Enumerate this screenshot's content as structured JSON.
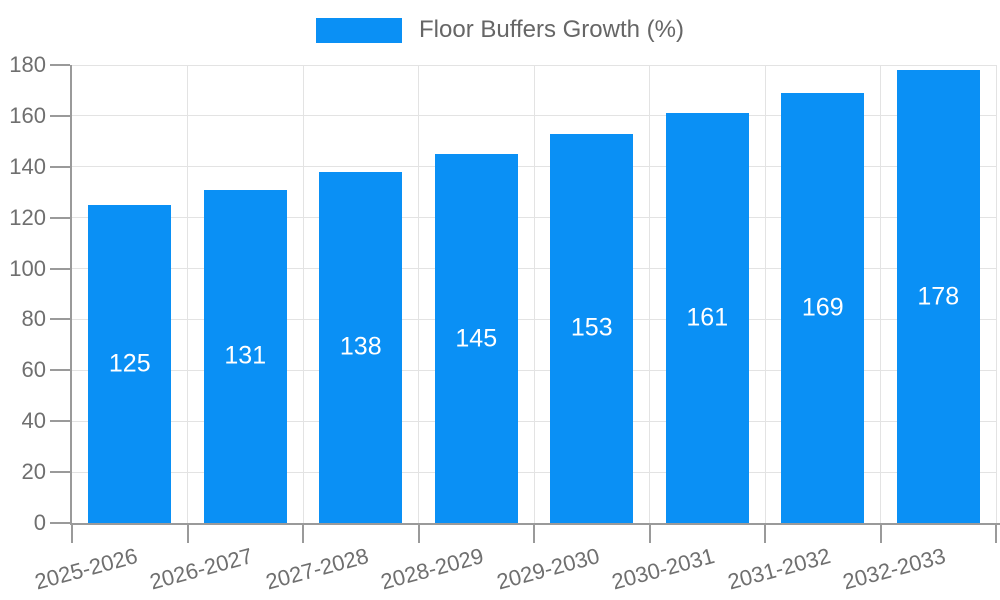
{
  "legend": {
    "label": "Floor Buffers Growth (%)",
    "swatch_color": "#0a90f5"
  },
  "chart_data": {
    "type": "bar",
    "title": "Floor Buffers Growth (%)",
    "series_name": "Floor Buffers Growth (%)",
    "categories": [
      "2025-2026",
      "2026-2027",
      "2027-2028",
      "2028-2029",
      "2029-2030",
      "2030-2031",
      "2031-2032",
      "2032-2033"
    ],
    "values": [
      125,
      131,
      138,
      145,
      153,
      161,
      169,
      178
    ],
    "value_labels": [
      "125",
      "131",
      "138",
      "145",
      "153",
      "161",
      "169",
      "178"
    ],
    "xlabel": "",
    "ylabel": "",
    "ylim": [
      0,
      180
    ],
    "yticks": [
      0,
      20,
      40,
      60,
      80,
      100,
      120,
      140,
      160,
      180
    ],
    "grid": true,
    "legend_position": "top",
    "x_tick_rotation_deg": -15,
    "colors": {
      "bar": "#0a90f5",
      "value_label": "#ffffff",
      "axis_line": "#9a9a9a",
      "gridline": "#e3e3e3",
      "tick_label": "#6f6f6f",
      "legend_text": "#666666"
    }
  }
}
